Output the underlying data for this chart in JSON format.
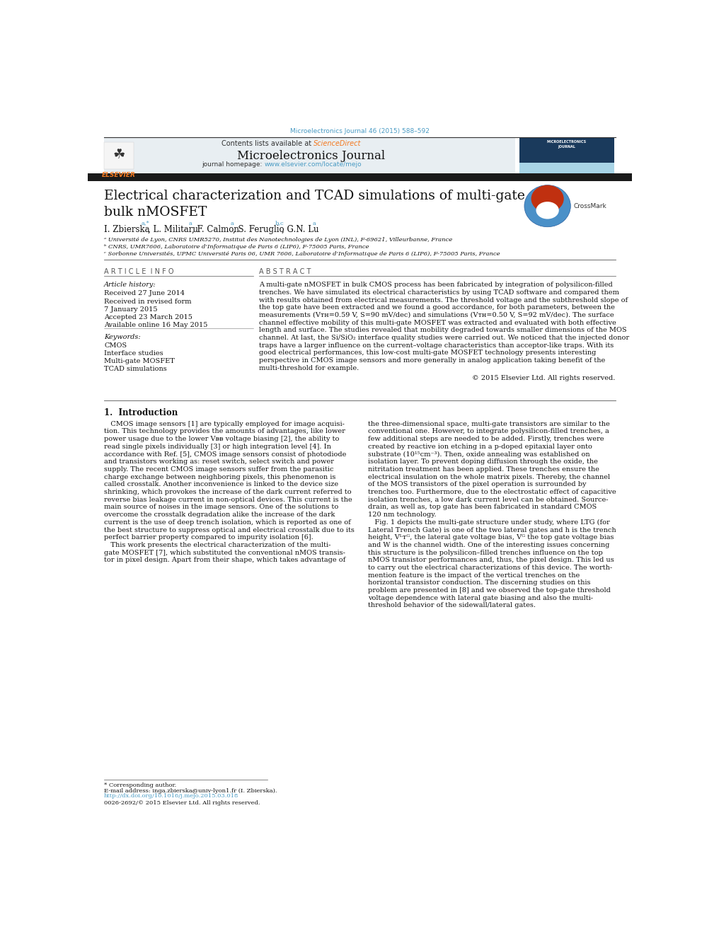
{
  "page_width": 9.92,
  "page_height": 13.23,
  "dpi": 100,
  "bg_color": "#ffffff",
  "top_journal_ref": "Microelectronics Journal 46 (2015) 588–592",
  "top_journal_ref_color": "#4a9bc4",
  "header_bg": "#e8eef2",
  "header_contents_text": "Contents lists available at ",
  "header_sciencedirect": "ScienceDirect",
  "header_sciencedirect_color": "#f47920",
  "header_journal_title": "Microelectronics Journal",
  "header_homepage_text": "journal homepage: ",
  "header_homepage_url": "www.elsevier.com/locate/mejo",
  "header_homepage_url_color": "#4a9bc4",
  "elsevier_logo_color": "#f47920",
  "black_bar_color": "#1a1a1a",
  "paper_title": "Electrical characterization and TCAD simulations of multi-gate\nbulk nMOSFET",
  "paper_title_fontsize": 18,
  "affil_a": "ᵃ Université de Lyon, CNRS UMR5270, Institut des Nanotechnologies de Lyon (INL), F-69621, Villeurbanne, France",
  "affil_b": "ᵇ CNRS, UMR7606, Laboratoire d’Informatique de Paris 6 (LIP6), F-75005 Paris, France",
  "affil_c": "ᶜ Sorbonne Universités, UPMC Université Paris 06, UMR 7606, Laboratoire d’Informatique de Paris 6 (LIP6), F-75005 Paris, France",
  "article_info_title": "A R T I C L E  I N F O",
  "abstract_title": "A B S T R A C T",
  "article_history_label": "Article history:",
  "article_history": [
    "Received 27 June 2014",
    "Received in revised form",
    "7 January 2015",
    "Accepted 23 March 2015",
    "Available online 16 May 2015"
  ],
  "keywords_label": "Keywords:",
  "keywords": [
    "CMOS",
    "Interface studies",
    "Multi-gate MOSFET",
    "TCAD simulations"
  ],
  "copyright": "© 2015 Elsevier Ltd. All rights reserved.",
  "intro_title": "1.  Introduction",
  "footnote_corresponding": "* Corresponding author.",
  "footnote_email": "E-mail address: inga.zbierska@univ-lyon1.fr (I. Zbierska).",
  "footnote_doi": "http://dx.doi.org/10.1016/j.mejo.2015.03.018",
  "footnote_issn": "0026-2692/© 2015 Elsevier Ltd. All rights reserved.",
  "abstract_lines": [
    "A multi-gate nMOSFET in bulk CMOS process has been fabricated by integration of polysilicon-filled",
    "trenches. We have simulated its electrical characteristics by using TCAD software and compared them",
    "with results obtained from electrical measurements. The threshold voltage and the subthreshold slope of",
    "the top gate have been extracted and we found a good accordance, for both parameters, between the",
    "measurements (Vᴛʜ=0.59 V, S=90 mV/dec) and simulations (Vᴛʜ=0.50 V, S=92 mV/dec). The surface",
    "channel effective mobility of this multi-gate MOSFET was extracted and evaluated with both effective",
    "length and surface. The studies revealed that mobility degraded towards smaller dimensions of the MOS",
    "channel. At last, the Si/SiO₂ interface quality studies were carried out. We noticed that the injected donor",
    "traps have a larger influence on the current–voltage characteristics than acceptor-like traps. With its",
    "good electrical performances, this low-cost multi-gate MOSFET technology presents interesting",
    "perspective in CMOS image sensors and more generally in analog application taking benefit of the",
    "multi-threshold for example."
  ],
  "intro_col1_lines": [
    "   CMOS image sensors [1] are typically employed for image acquisi-",
    "tion. This technology provides the amounts of advantages, like lower",
    "power usage due to the lower Vᴃᴃ voltage biasing [2], the ability to",
    "read single pixels individually [3] or high integration level [4]. In",
    "accordance with Ref. [5], CMOS image sensors consist of photodiode",
    "and transistors working as: reset switch, select switch and power",
    "supply. The recent CMOS image sensors suffer from the parasitic",
    "charge exchange between neighboring pixels, this phenomenon is",
    "called crosstalk. Another inconvenience is linked to the device size",
    "shrinking, which provokes the increase of the dark current referred to",
    "reverse bias leakage current in non-optical devices. This current is the",
    "main source of noises in the image sensors. One of the solutions to",
    "overcome the crosstalk degradation alike the increase of the dark",
    "current is the use of deep trench isolation, which is reported as one of",
    "the best structure to suppress optical and electrical crosstalk due to its",
    "perfect barrier property compared to impurity isolation [6].",
    "   This work presents the electrical characterization of the multi-",
    "gate MOSFET [7], which substituted the conventional nMOS transis-",
    "tor in pixel design. Apart from their shape, which takes advantage of"
  ],
  "intro_col2_lines": [
    "the three-dimensional space, multi-gate transistors are similar to the",
    "conventional one. However, to integrate polysilicon-filled trenches, a",
    "few additional steps are needed to be added. Firstly, trenches were",
    "created by reactive ion etching in a p-doped epitaxial layer onto",
    "substrate (10¹⁵cm⁻³). Then, oxide annealing was established on",
    "isolation layer. To prevent doping diffusion through the oxide, the",
    "nitritation treatment has been applied. These trenches ensure the",
    "electrical insulation on the whole matrix pixels. Thereby, the channel",
    "of the MOS transistors of the pixel operation is surrounded by",
    "trenches too. Furthermore, due to the electrostatic effect of capacitive",
    "isolation trenches, a low dark current level can be obtained. Source-",
    "drain, as well as, top gate has been fabricated in standard CMOS",
    "120 nm technology.",
    "   Fig. 1 depicts the multi-gate structure under study, where LTG (for",
    "Lateral Trench Gate) is one of the two lateral gates and h is the trench",
    "height, Vᴸᴛᴳ, the lateral gate voltage bias, Vᴳ the top gate voltage bias",
    "and W is the channel width. One of the interesting issues concerning",
    "this structure is the polysilicon–filled trenches influence on the top",
    "nMOS transistor performances and, thus, the pixel design. This led us",
    "to carry out the electrical characterizations of this device. The worth-",
    "mention feature is the impact of the vertical trenches on the",
    "horizontal transistor conduction. The discerning studies on this",
    "problem are presented in [8] and we observed the top-gate threshold",
    "voltage dependence with lateral gate biasing and also the multi-",
    "threshold behavior of the sidewall/lateral gates."
  ]
}
